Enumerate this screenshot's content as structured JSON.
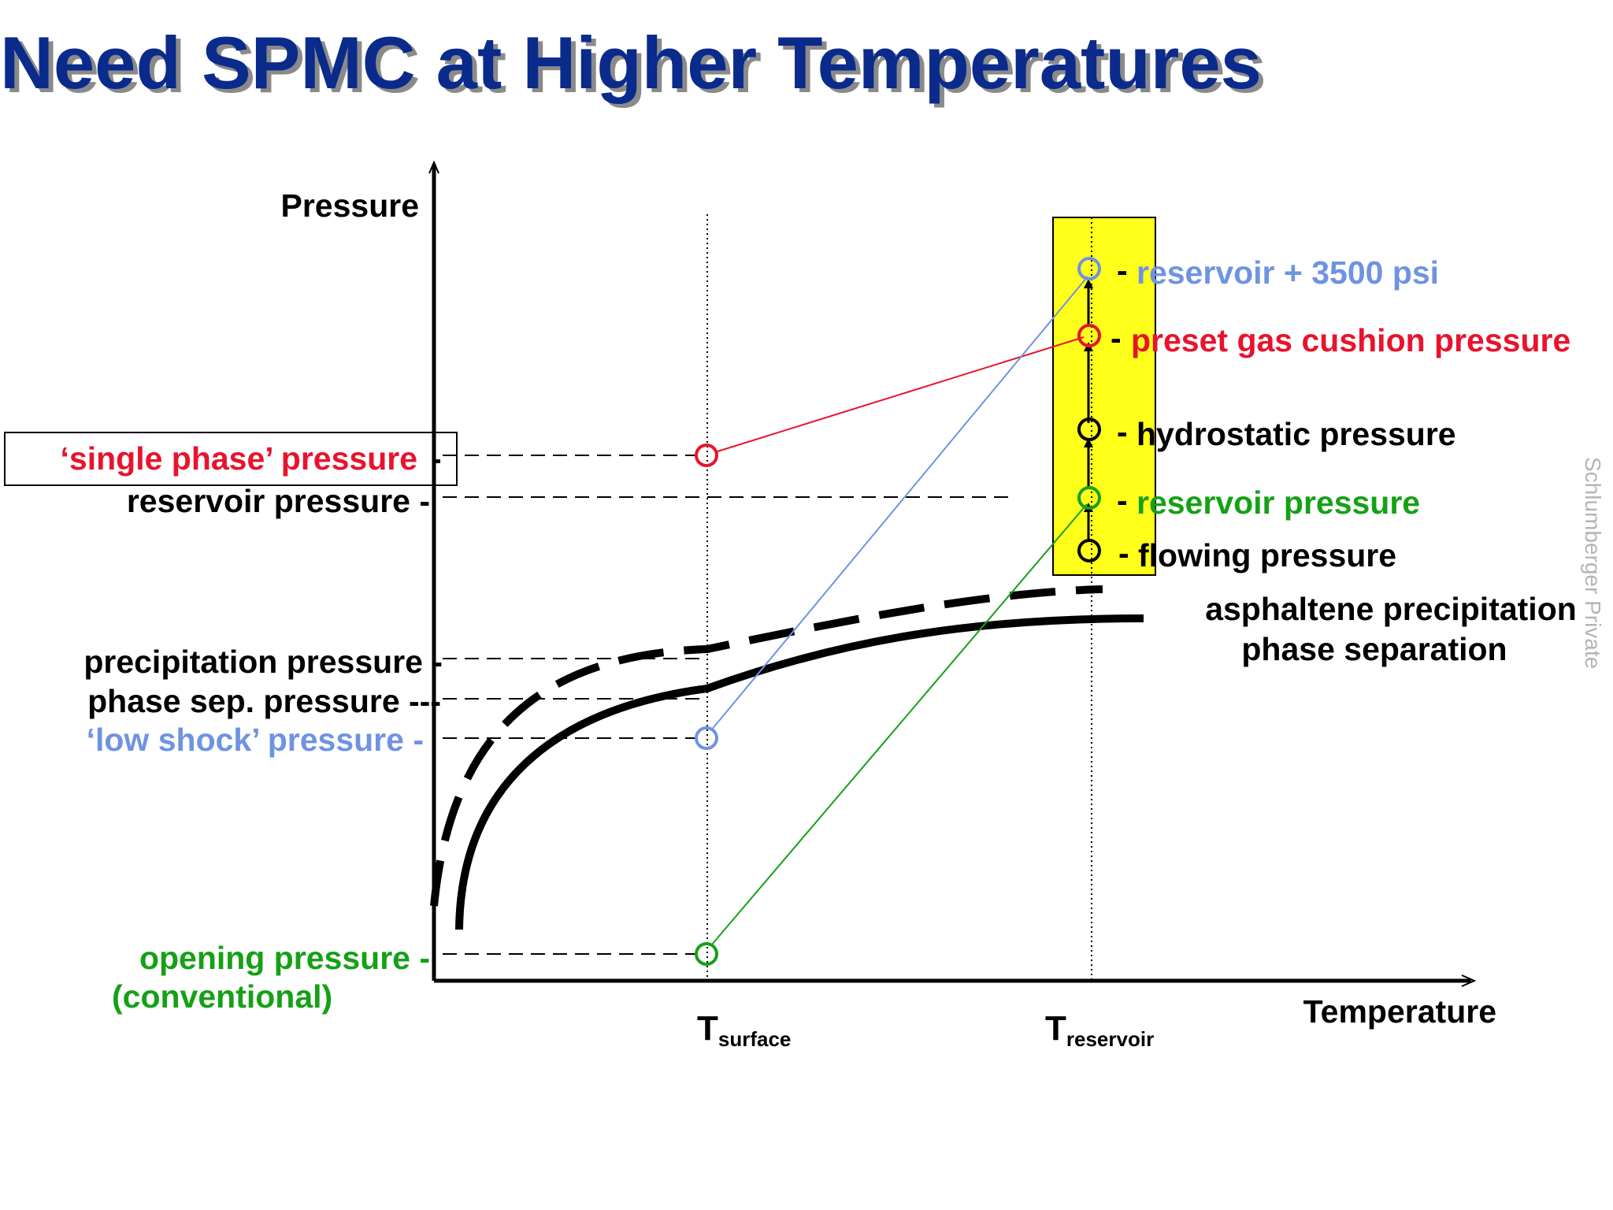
{
  "title": "Need SPMC at Higher Temperatures",
  "colors": {
    "title": "#0a2a8c",
    "title_shadow": "#8a8a8a",
    "red": "#e8132d",
    "blue": "#6f93e2",
    "green": "#16a016",
    "black": "#000000",
    "yellow": "#ffff1a",
    "watermark": "#b4b4b4"
  },
  "axes": {
    "y_label": "Pressure",
    "x_label": "Temperature",
    "t_surface_main": "T",
    "t_surface_sub": "surface",
    "t_reservoir_main": "T",
    "t_reservoir_sub": "reservoir"
  },
  "left_labels": {
    "single_phase": "‘single phase’ pressure",
    "reservoir": "reservoir pressure -",
    "precipitation": "precipitation pressure -",
    "phase_sep": "phase sep. pressure ---",
    "low_shock": "‘low shock’ pressure -",
    "opening_line1": "opening pressure -",
    "opening_line2": "(conventional)"
  },
  "right_labels": {
    "reservoir_3500": "reservoir + 3500 psi",
    "preset_gas": "preset gas cushion pressure",
    "hydrostatic": "hydrostatic pressure",
    "reservoir": "reservoir pressure",
    "flowing": "flowing pressure"
  },
  "curve_labels": {
    "asphaltene": "asphaltene precipitation",
    "phase_separation": "phase separation"
  },
  "watermark": "Schlumberger Private"
}
